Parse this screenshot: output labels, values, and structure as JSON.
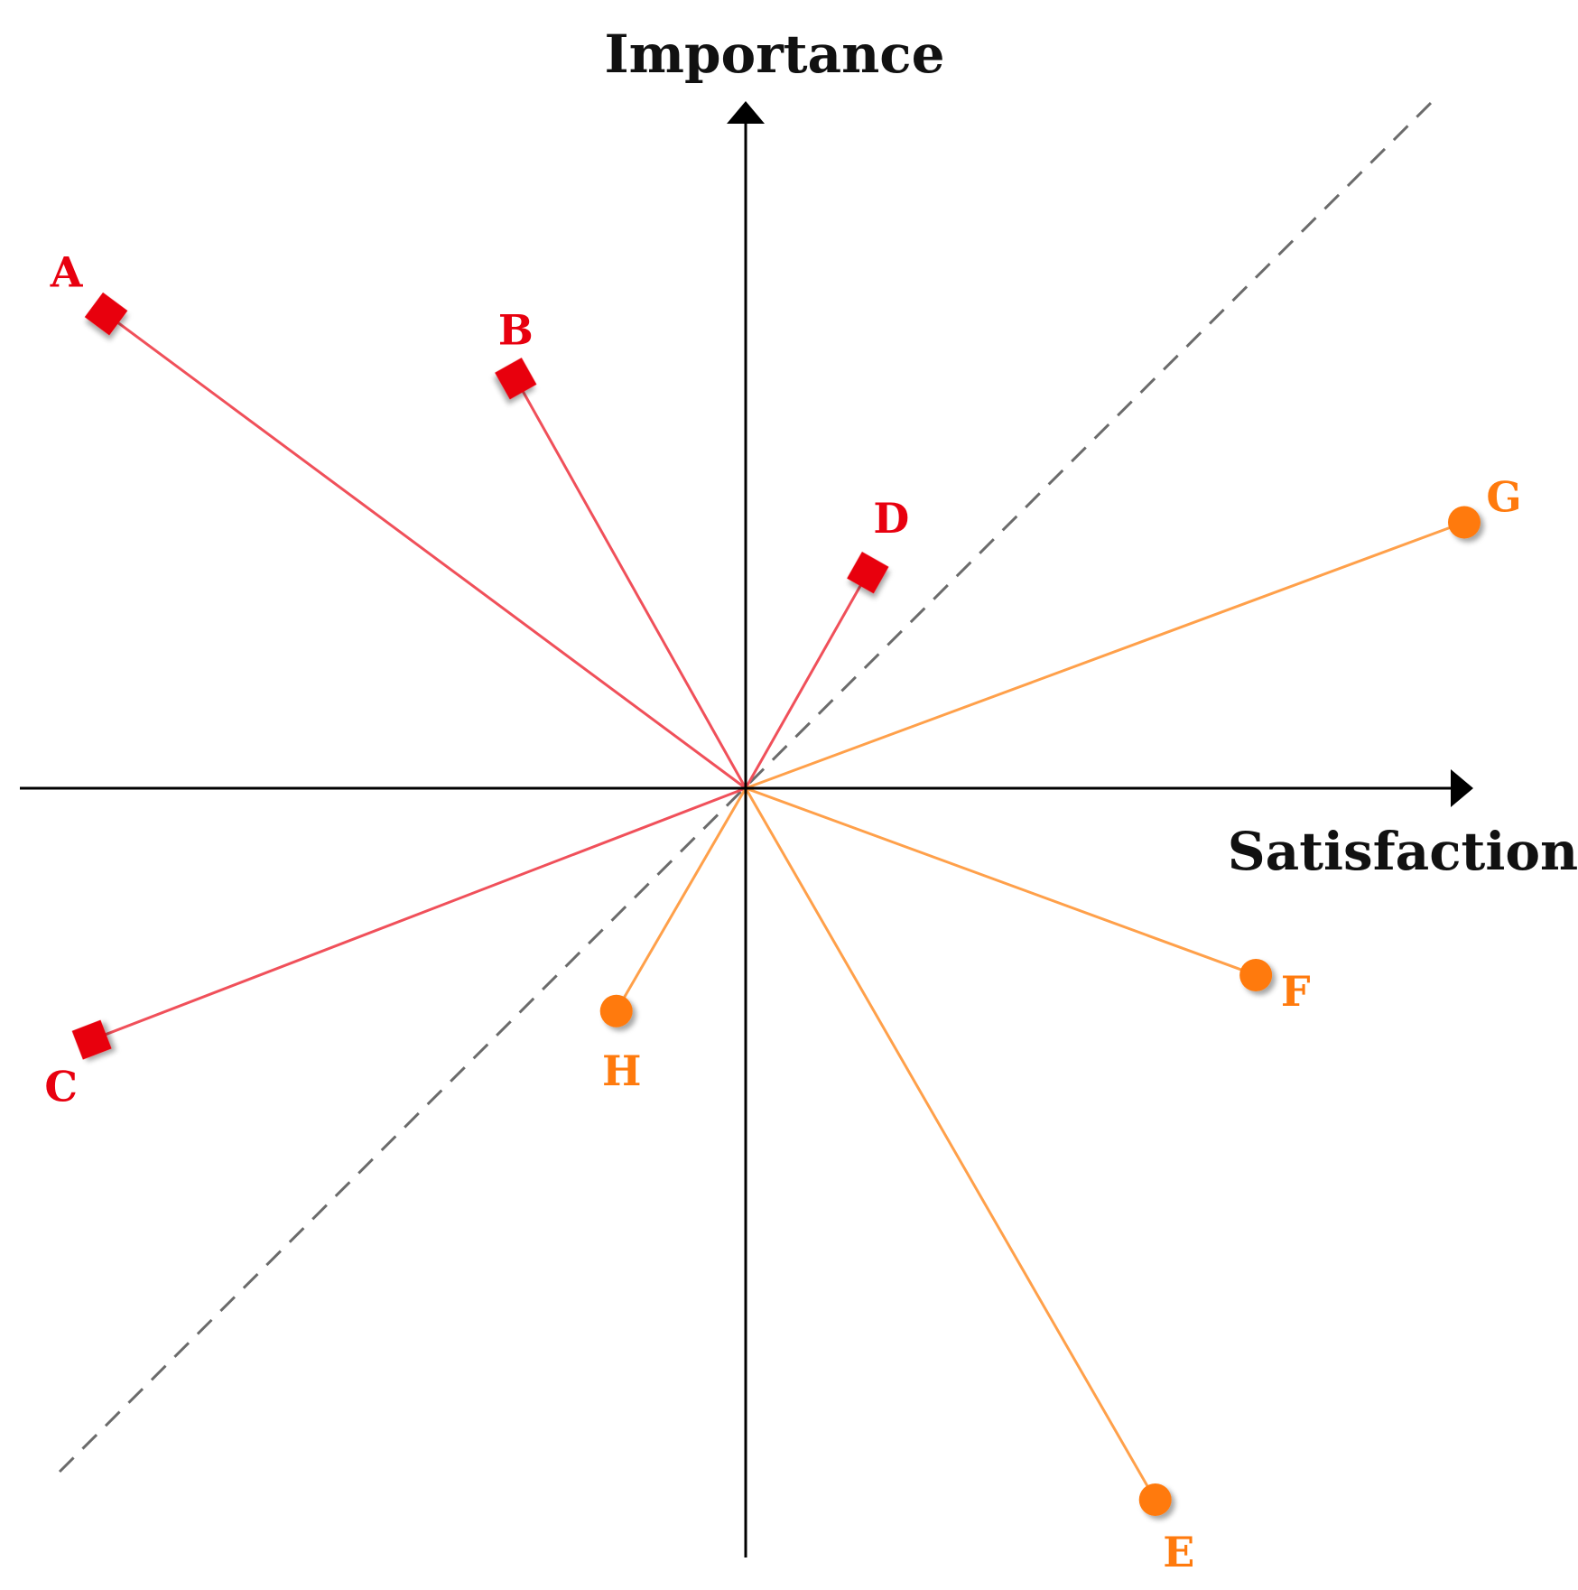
{
  "axes": {
    "y_label": "Importance",
    "x_label": "Satisfaction"
  },
  "colors": {
    "red": "#e8000f",
    "red_line": "#f0505a",
    "orange": "#ff7a0d",
    "orange_line": "#ffa04a",
    "axis": "#000000",
    "diagonal": "#6b6b6b"
  },
  "chart_data": {
    "type": "scatter",
    "xlabel": "Satisfaction",
    "ylabel": "Importance",
    "xlim": [
      -1,
      1
    ],
    "ylim": [
      -1,
      1
    ],
    "grid": false,
    "reference_line": "y = x (dashed)",
    "points": [
      {
        "label": "A",
        "x": -0.89,
        "y": 0.66,
        "marker": "square",
        "color": "red"
      },
      {
        "label": "B",
        "x": -0.32,
        "y": 0.57,
        "marker": "square",
        "color": "red"
      },
      {
        "label": "C",
        "x": -0.91,
        "y": -0.35,
        "marker": "square",
        "color": "red"
      },
      {
        "label": "D",
        "x": 0.17,
        "y": 0.3,
        "marker": "square",
        "color": "red"
      },
      {
        "label": "E",
        "x": 0.57,
        "y": -0.99,
        "marker": "circle",
        "color": "orange"
      },
      {
        "label": "F",
        "x": 0.71,
        "y": -0.26,
        "marker": "circle",
        "color": "orange"
      },
      {
        "label": "G",
        "x": 1.0,
        "y": 0.37,
        "marker": "circle",
        "color": "orange"
      },
      {
        "label": "H",
        "x": -0.18,
        "y": -0.31,
        "marker": "circle",
        "color": "orange"
      }
    ]
  }
}
